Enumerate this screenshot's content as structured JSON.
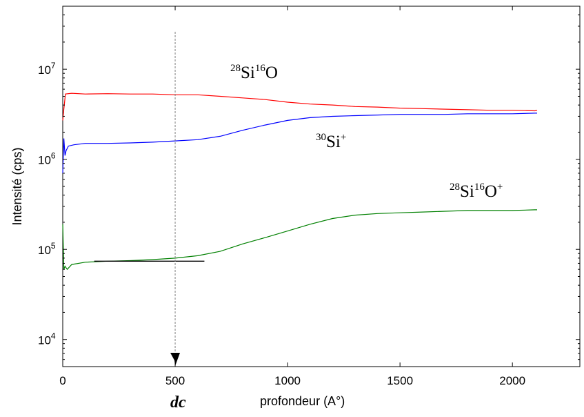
{
  "chart_data": {
    "type": "line",
    "title": "",
    "xlabel": "profondeur (A°)",
    "ylabel": "Intensité (cps)",
    "xlim": [
      0,
      2300
    ],
    "ylim": [
      5000,
      50000000
    ],
    "yscale": "log",
    "grid": false,
    "x_ticks": [
      "0",
      "500",
      "1000",
      "1500",
      "2000"
    ],
    "y_ticks": [
      {
        "base": "10",
        "exp": "4",
        "value": 10000
      },
      {
        "base": "10",
        "exp": "5",
        "value": 100000
      },
      {
        "base": "10",
        "exp": "6",
        "value": 1000000
      },
      {
        "base": "10",
        "exp": "7",
        "value": 10000000
      }
    ],
    "series": [
      {
        "color": "#ff0000",
        "x": [
          0,
          5,
          12,
          40,
          100,
          200,
          300,
          400,
          500,
          600,
          700,
          800,
          900,
          1000,
          1100,
          1200,
          1300,
          1400,
          1500,
          1600,
          1700,
          1800,
          1900,
          2000,
          2100,
          2110
        ],
        "y": [
          2700000,
          3600000,
          5300000,
          5400000,
          5300000,
          5350000,
          5300000,
          5300000,
          5200000,
          5200000,
          5000000,
          4800000,
          4600000,
          4300000,
          4100000,
          4000000,
          3850000,
          3800000,
          3700000,
          3650000,
          3600000,
          3550000,
          3500000,
          3500000,
          3450000,
          3500000
        ]
      },
      {
        "color": "#0000ff",
        "x": [
          0,
          5,
          10,
          15,
          25,
          50,
          100,
          200,
          300,
          400,
          500,
          600,
          700,
          800,
          900,
          1000,
          1100,
          1200,
          1300,
          1400,
          1500,
          1600,
          1700,
          1800,
          1900,
          2000,
          2100,
          2110
        ],
        "y": [
          700000,
          1700000,
          1100000,
          1250000,
          1400000,
          1450000,
          1500000,
          1500000,
          1520000,
          1550000,
          1600000,
          1650000,
          1800000,
          2100000,
          2400000,
          2700000,
          2900000,
          3000000,
          3050000,
          3100000,
          3150000,
          3150000,
          3150000,
          3200000,
          3200000,
          3200000,
          3250000,
          3250000
        ]
      },
      {
        "color": "#008000",
        "x": [
          0,
          5,
          10,
          20,
          40,
          100,
          200,
          300,
          400,
          500,
          600,
          700,
          800,
          900,
          1000,
          1100,
          1200,
          1300,
          1400,
          1500,
          1600,
          1700,
          1800,
          1900,
          2000,
          2100,
          2110
        ],
        "y": [
          190000,
          60000,
          65000,
          60000,
          68000,
          72000,
          74000,
          75000,
          77000,
          80000,
          85000,
          95000,
          115000,
          135000,
          160000,
          190000,
          220000,
          240000,
          250000,
          255000,
          260000,
          265000,
          270000,
          270000,
          270000,
          275000,
          275000
        ]
      }
    ],
    "reference_lines": {
      "baseline": {
        "x": [
          140,
          630
        ],
        "y": [
          74000,
          74000
        ],
        "color": "#000000"
      },
      "dc_line": {
        "x": 500,
        "color": "#7f7f7f",
        "style": "dashed"
      }
    },
    "annotations": {
      "sio_neg": {
        "mass": "28",
        "el": "Si",
        "mass2": "16",
        "tail": "O",
        "charge": ""
      },
      "si_pos": {
        "mass": "30",
        "el": "Si",
        "charge": "+"
      },
      "sio_pos": {
        "mass": "28",
        "el": "Si",
        "mass2": "16",
        "tail": "O",
        "charge": "+"
      },
      "dc": "dc"
    }
  }
}
